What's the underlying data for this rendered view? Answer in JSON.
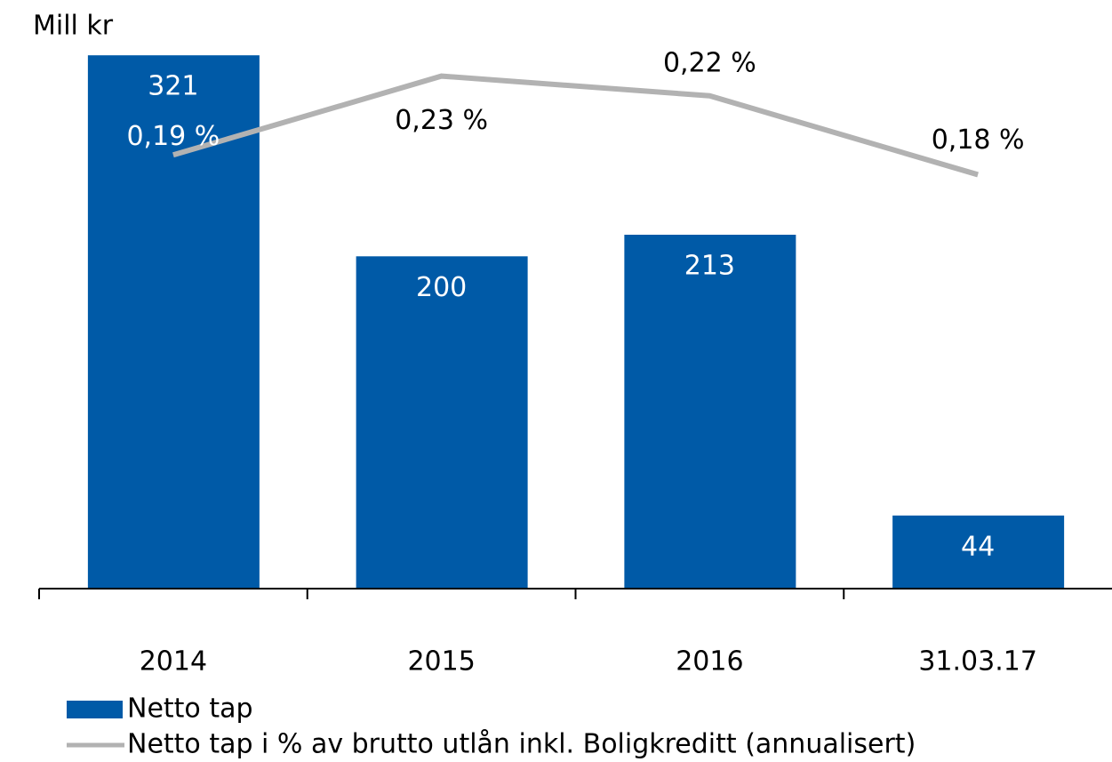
{
  "chart_data": {
    "type": "bar",
    "title": "Mill kr",
    "categories": [
      "2014",
      "2015",
      "2016",
      "31.03.17"
    ],
    "series": [
      {
        "name": "Netto tap",
        "type": "bar",
        "color": "#005aa7",
        "values": [
          321,
          200,
          213,
          44
        ]
      },
      {
        "name": "Netto tap i % av brutto utlån inkl. Boligkreditt (annualisert)",
        "type": "line",
        "axis": "y2",
        "color": "#b2b2b2",
        "values": [
          0.19,
          0.23,
          0.22,
          0.18
        ],
        "value_labels": [
          "0,19 %",
          "0,23 %",
          "0,22 %",
          "0,18 %"
        ]
      }
    ],
    "ylim": [
      0,
      350
    ],
    "y2lim": [
      -0.03,
      0.265
    ],
    "grid": false,
    "legend": "bottom"
  }
}
